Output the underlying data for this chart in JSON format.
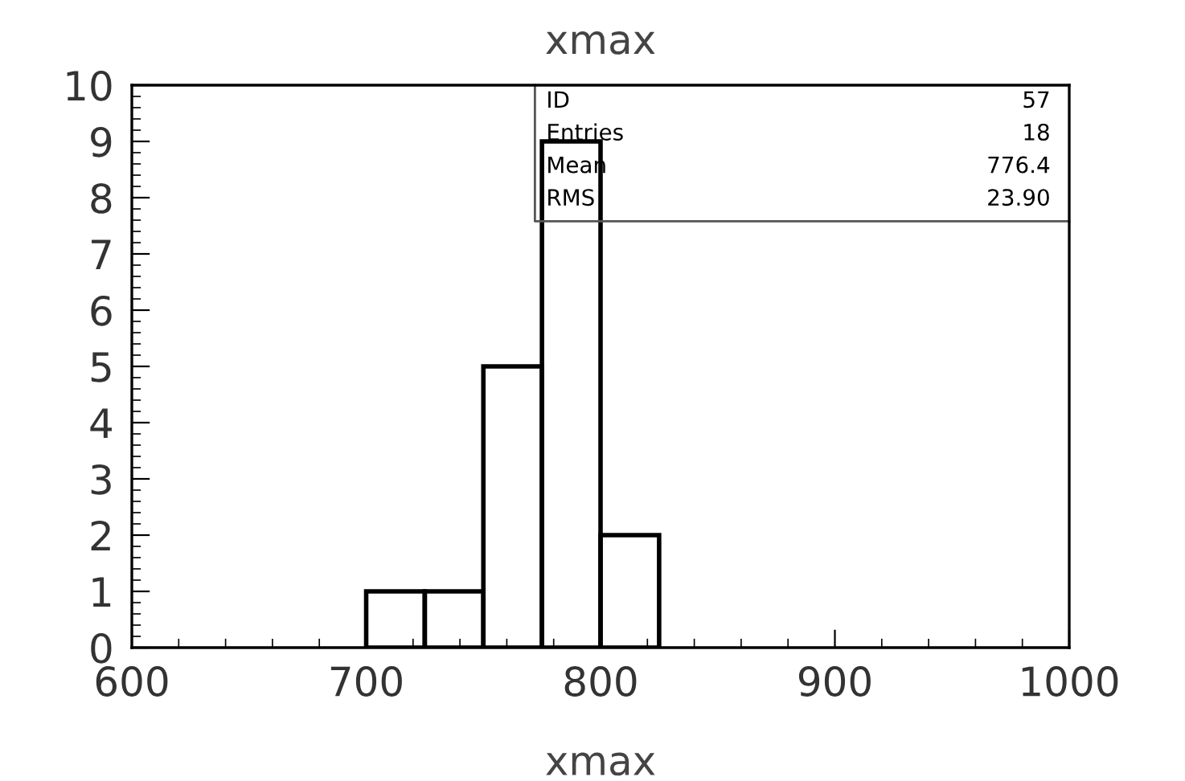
{
  "chart_data": {
    "type": "histogram",
    "title": "xmax",
    "xlabel": "xmax",
    "bins": [
      700,
      725,
      750,
      775,
      800,
      825
    ],
    "values": [
      1,
      1,
      5,
      9,
      2
    ],
    "color": "#000000",
    "xlim": [
      600,
      1000
    ],
    "xticks": [
      600,
      700,
      800,
      900,
      1000
    ],
    "ylim": [
      0,
      10
    ],
    "yticks": [
      0,
      1,
      2,
      3,
      4,
      5,
      6,
      7,
      8,
      9,
      10
    ],
    "grid": false,
    "annotations": [
      "ID",
      "57",
      "Entries",
      "18",
      "Mean",
      "776.4",
      "RMS",
      "23.90"
    ]
  }
}
